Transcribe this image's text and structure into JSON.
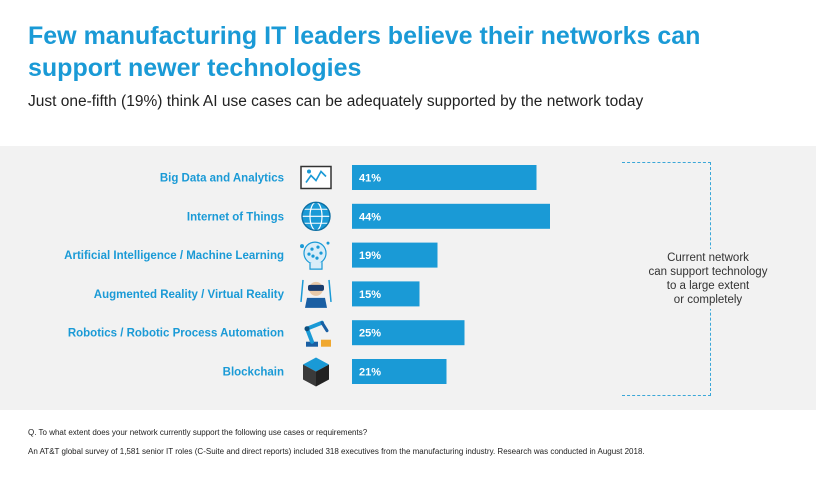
{
  "title": "Few manufacturing IT leaders believe their networks can support newer technologies",
  "subtitle": "Just one-fifth (19%) think AI use cases can be adequately supported by the network today",
  "chart_data": {
    "type": "bar",
    "orientation": "horizontal",
    "categories": [
      "Big Data and Analytics",
      "Internet of Things",
      "Artificial Intelligence / Machine Learning",
      "Augmented Reality / Virtual Reality",
      "Robotics / Robotic Process Automation",
      "Blockchain"
    ],
    "values": [
      41,
      44,
      19,
      15,
      25,
      21
    ],
    "value_labels": [
      "41%",
      "44%",
      "19%",
      "15%",
      "25%",
      "21%"
    ],
    "icons": [
      "chart-screen-icon",
      "globe-icon",
      "ai-head-icon",
      "vr-headset-icon",
      "robot-arm-icon",
      "blockchain-cube-icon"
    ],
    "bar_color": "#1a9ad6",
    "xlim": [
      0,
      44
    ],
    "grid": false
  },
  "bracket_label": "Current network\ncan support technology\nto a large extent\nor completely",
  "question": "Q. To what extent does your network currently support the following use cases or requirements?",
  "note": "An AT&T global survey of 1,581 senior IT roles (C-Suite and direct reports) included 318 executives from the manufacturing industry. Research was conducted in August 2018.",
  "colors": {
    "accent": "#1a9ad6",
    "panel": "#f2f2f2"
  }
}
